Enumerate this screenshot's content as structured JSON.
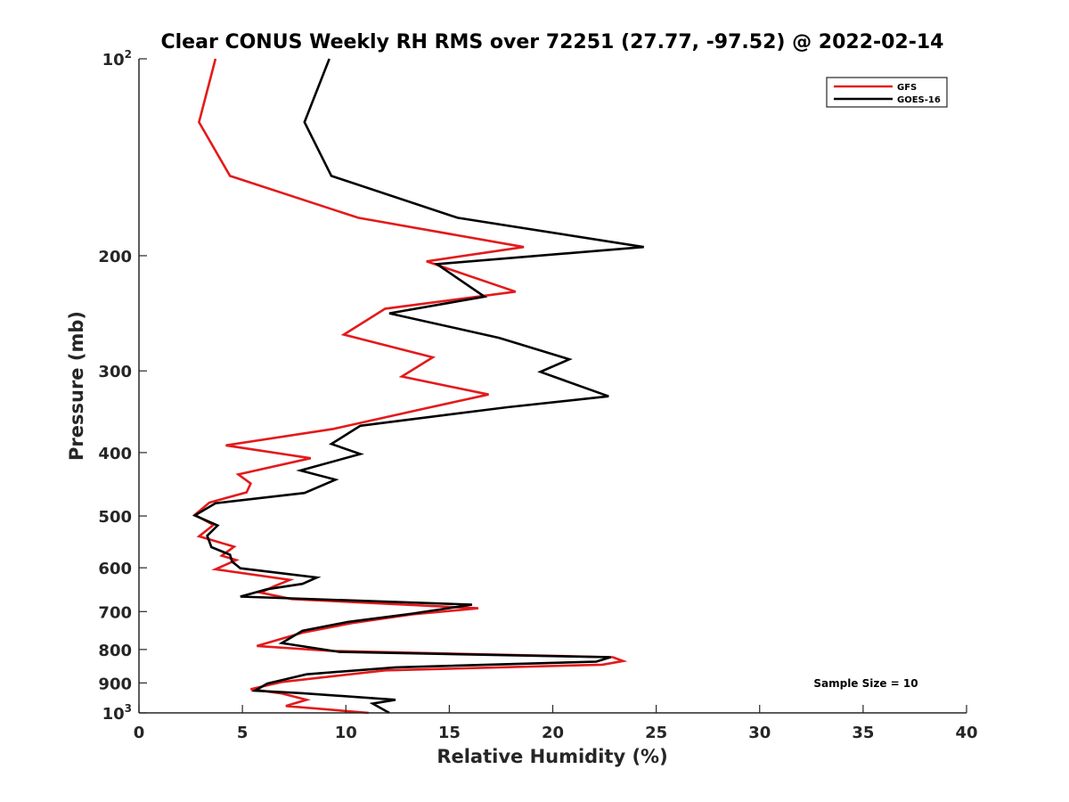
{
  "chart_data": {
    "type": "line",
    "title": "Clear CONUS Weekly RH RMS over 72251 (27.77, -97.52) @ 2022-02-14",
    "xlabel": "Relative Humidity (%)",
    "ylabel": "Pressure (mb)",
    "xlim": [
      0,
      40
    ],
    "ylim": [
      100,
      1000
    ],
    "y_scale": "log",
    "y_reversed": true,
    "x_ticks": [
      "0",
      "5",
      "10",
      "15",
      "20",
      "25",
      "30",
      "35",
      "40"
    ],
    "y_ticks": [
      {
        "value": 100,
        "base": "10",
        "sup": "2"
      },
      {
        "value": 200,
        "base": "200",
        "sup": ""
      },
      {
        "value": 300,
        "base": "300",
        "sup": ""
      },
      {
        "value": 400,
        "base": "400",
        "sup": ""
      },
      {
        "value": 500,
        "base": "500",
        "sup": ""
      },
      {
        "value": 600,
        "base": "600",
        "sup": ""
      },
      {
        "value": 700,
        "base": "700",
        "sup": ""
      },
      {
        "value": 800,
        "base": "800",
        "sup": ""
      },
      {
        "value": 900,
        "base": "900",
        "sup": ""
      },
      {
        "value": 1000,
        "base": "10",
        "sup": "3"
      }
    ],
    "grid": false,
    "legend_position": "top-right",
    "annotation": "Sample Size = 10",
    "series": [
      {
        "name": "GFS",
        "color": "#e31a1c",
        "points": [
          [
            3.7,
            100
          ],
          [
            2.9,
            125
          ],
          [
            4.4,
            151
          ],
          [
            10.6,
            175
          ],
          [
            18.6,
            194
          ],
          [
            13.9,
            204
          ],
          [
            18.2,
            227
          ],
          [
            11.9,
            241
          ],
          [
            9.9,
            264
          ],
          [
            14.2,
            286
          ],
          [
            12.7,
            306
          ],
          [
            16.9,
            326
          ],
          [
            13.9,
            342
          ],
          [
            9.4,
            368
          ],
          [
            4.2,
            390
          ],
          [
            8.3,
            408
          ],
          [
            4.8,
            432
          ],
          [
            5.4,
            446
          ],
          [
            5.2,
            460
          ],
          [
            3.4,
            477
          ],
          [
            2.7,
            498
          ],
          [
            3.6,
            516
          ],
          [
            2.9,
            537
          ],
          [
            4.6,
            557
          ],
          [
            4.0,
            575
          ],
          [
            4.7,
            584
          ],
          [
            3.7,
            603
          ],
          [
            7.3,
            626
          ],
          [
            6.5,
            641
          ],
          [
            5.9,
            655
          ],
          [
            7.4,
            670
          ],
          [
            16.4,
            692
          ],
          [
            13.2,
            707
          ],
          [
            10.3,
            729
          ],
          [
            7.9,
            754
          ],
          [
            5.7,
            790
          ],
          [
            9.3,
            804
          ],
          [
            22.9,
            822
          ],
          [
            23.4,
            833
          ],
          [
            22.4,
            844
          ],
          [
            11.9,
            861
          ],
          [
            6.9,
            897
          ],
          [
            5.4,
            920
          ],
          [
            6.9,
            934
          ],
          [
            8.1,
            955
          ],
          [
            7.1,
            976
          ],
          [
            11.1,
            1000
          ]
        ]
      },
      {
        "name": "GOES-16",
        "color": "#000000",
        "points": [
          [
            9.2,
            100
          ],
          [
            8.0,
            125
          ],
          [
            9.3,
            151
          ],
          [
            15.4,
            175
          ],
          [
            24.4,
            194
          ],
          [
            14.4,
            206
          ],
          [
            16.7,
            231
          ],
          [
            12.1,
            245
          ],
          [
            17.4,
            267
          ],
          [
            20.8,
            288
          ],
          [
            19.4,
            301
          ],
          [
            22.7,
            328
          ],
          [
            17.8,
            341
          ],
          [
            10.7,
            364
          ],
          [
            9.3,
            388
          ],
          [
            10.7,
            402
          ],
          [
            7.8,
            426
          ],
          [
            9.5,
            440
          ],
          [
            8.0,
            461
          ],
          [
            3.7,
            478
          ],
          [
            2.7,
            499
          ],
          [
            3.8,
            517
          ],
          [
            3.3,
            536
          ],
          [
            3.5,
            558
          ],
          [
            4.4,
            573
          ],
          [
            4.5,
            587
          ],
          [
            4.9,
            601
          ],
          [
            8.6,
            621
          ],
          [
            7.9,
            635
          ],
          [
            6.2,
            647
          ],
          [
            4.9,
            664
          ],
          [
            16.1,
            683
          ],
          [
            13.2,
            705
          ],
          [
            10.1,
            726
          ],
          [
            7.9,
            749
          ],
          [
            6.9,
            782
          ],
          [
            9.7,
            807
          ],
          [
            22.8,
            822
          ],
          [
            22.1,
            835
          ],
          [
            12.4,
            852
          ],
          [
            8.1,
            873
          ],
          [
            6.2,
            902
          ],
          [
            5.6,
            925
          ],
          [
            7.9,
            933
          ],
          [
            12.4,
            955
          ],
          [
            11.3,
            968
          ],
          [
            12.1,
            1000
          ]
        ]
      }
    ]
  }
}
